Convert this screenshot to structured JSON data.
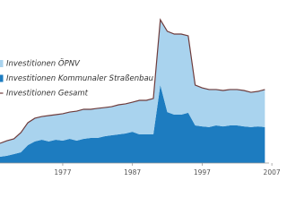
{
  "chart_data": {
    "type": "area",
    "x": [
      1968,
      1969,
      1970,
      1971,
      1972,
      1973,
      1974,
      1975,
      1976,
      1977,
      1978,
      1979,
      1980,
      1981,
      1982,
      1983,
      1984,
      1985,
      1986,
      1987,
      1988,
      1989,
      1990,
      1991,
      1992,
      1993,
      1994,
      1995,
      1996,
      1997,
      1998,
      1999,
      2000,
      2001,
      2002,
      2003,
      2004,
      2005,
      2006
    ],
    "xlim": [
      1968,
      2006.6
    ],
    "xticks": [
      1977,
      1987,
      1997,
      2007
    ],
    "ylim": [
      0,
      100
    ],
    "stacked": true,
    "series": [
      {
        "name": "Investitionen ÖPNV",
        "color": "#a9d3ee",
        "type": "area",
        "values": [
          8.7,
          9.8,
          9.9,
          12.8,
          14.6,
          15.1,
          15.1,
          16.8,
          16.3,
          17.5,
          17.4,
          19.2,
          19.2,
          18.6,
          19.2,
          18.6,
          18.6,
          19.2,
          19.2,
          19.2,
          22.1,
          22.1,
          23.3,
          42.4,
          52.4,
          52.3,
          52.3,
          50.0,
          26.2,
          25.0,
          24.4,
          23.3,
          23.3,
          23.3,
          23.3,
          23.3,
          22.6,
          22.7,
          24.4
        ]
      },
      {
        "name": "Investitionen Kommunaler Straßenbau",
        "color": "#1d7cc0",
        "type": "area",
        "values": [
          4.1,
          4.7,
          5.8,
          7.0,
          11.6,
          14.0,
          15.1,
          14.0,
          15.1,
          14.5,
          15.7,
          14.5,
          15.7,
          16.3,
          16.3,
          17.4,
          18.0,
          18.6,
          19.2,
          20.3,
          18.6,
          18.6,
          18.6,
          50.6,
          33.1,
          31.4,
          31.4,
          32.6,
          24.4,
          23.8,
          23.3,
          24.4,
          23.8,
          24.4,
          24.4,
          23.8,
          23.3,
          23.8,
          23.3
        ]
      },
      {
        "name": "Investitionen Gesamt",
        "color": "#6e3c3c",
        "type": "line",
        "values": [
          12.8,
          14.5,
          15.7,
          19.8,
          26.2,
          29.1,
          30.2,
          30.8,
          31.4,
          32.0,
          33.1,
          33.7,
          34.9,
          34.9,
          35.5,
          36.0,
          36.6,
          37.8,
          38.4,
          39.5,
          40.7,
          40.7,
          41.9,
          93.0,
          85.5,
          83.7,
          83.7,
          82.6,
          50.6,
          48.8,
          47.7,
          47.7,
          47.1,
          47.7,
          47.7,
          47.1,
          45.9,
          46.5,
          47.7
        ]
      }
    ]
  }
}
